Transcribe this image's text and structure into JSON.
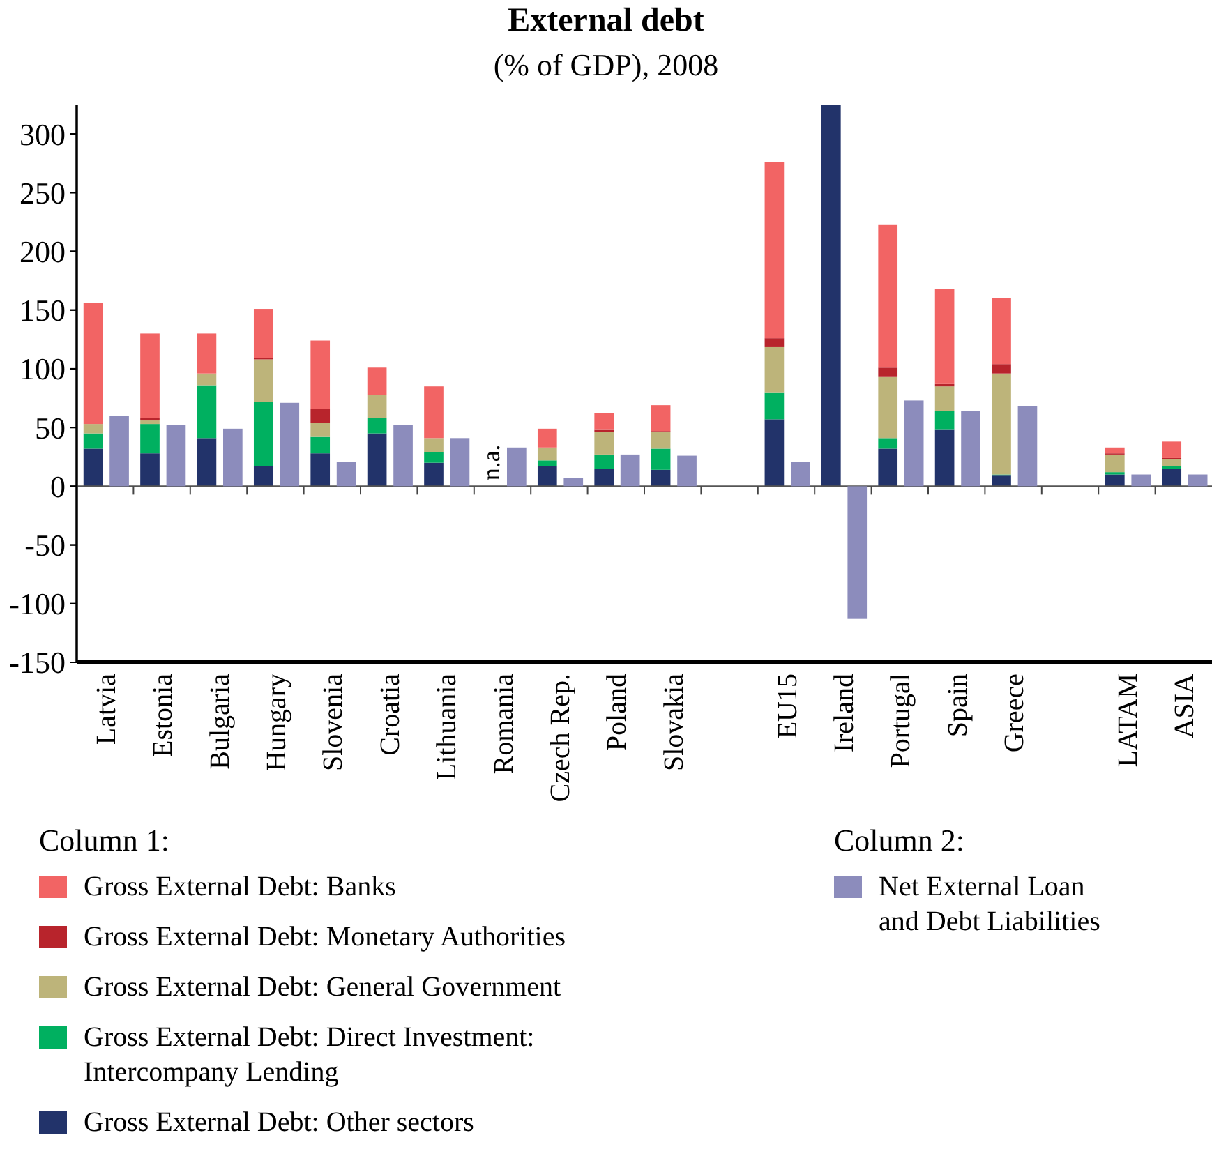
{
  "chart_data": [
    {
      "type": "bar",
      "title": "External debt",
      "subtitle": "(% of GDP), 2008",
      "categories": [
        "Latvia",
        "Estonia",
        "Bulgaria",
        "Hungary",
        "Slovenia",
        "Croatia",
        "Lithuania",
        "Romania",
        "Czech Rep.",
        "Poland",
        "Slovakia",
        null,
        "EU15",
        "Ireland",
        "Portugal",
        "Spain",
        "Greece",
        null,
        "LATAM",
        "ASIA"
      ],
      "stacked": true,
      "ylim": [
        -150,
        325
      ],
      "yticks": [
        -150,
        -100,
        -50,
        0,
        50,
        100,
        150,
        200,
        250,
        300
      ],
      "grid": false,
      "legend": "bottom",
      "series": [
        {
          "name": "Gross External Debt: Other sectors",
          "color": "#22336a",
          "values": [
            32,
            28,
            41,
            17,
            28,
            45,
            20,
            null,
            17,
            15,
            14,
            null,
            57,
            325,
            32,
            48,
            9,
            null,
            10,
            15
          ]
        },
        {
          "name": "Gross External Debt: Direct Investment: Intercompany Lending",
          "color": "#00b060",
          "values": [
            13,
            25,
            45,
            55,
            14,
            13,
            9,
            null,
            5,
            12,
            18,
            null,
            23,
            null,
            9,
            16,
            1,
            null,
            2,
            2
          ]
        },
        {
          "name": "Gross External Debt: General Government",
          "color": "#bdb47a",
          "values": [
            8,
            3,
            10,
            36,
            12,
            20,
            12,
            null,
            11,
            19,
            14,
            null,
            39,
            null,
            52,
            21,
            86,
            null,
            15,
            6
          ]
        },
        {
          "name": "Gross External Debt: Monetary Authorities",
          "color": "#b8242c",
          "values": [
            null,
            2,
            null,
            1,
            12,
            null,
            null,
            null,
            null,
            2,
            1,
            null,
            7,
            null,
            8,
            2,
            8,
            null,
            1,
            1
          ]
        },
        {
          "name": "Gross External Debt: Banks",
          "color": "#f26464",
          "values": [
            103,
            72,
            34,
            42,
            58,
            23,
            44,
            null,
            16,
            14,
            22,
            null,
            150,
            null,
            122,
            81,
            56,
            null,
            5,
            14
          ]
        }
      ],
      "ref_lines": [
        {
          "axis": "y",
          "value": 0
        }
      ],
      "annotations": [
        "Column 1:",
        "n.a."
      ]
    },
    {
      "type": "bar",
      "categories": [
        null,
        null,
        null,
        null,
        null,
        null,
        null,
        null,
        null,
        null,
        null,
        null,
        null,
        null,
        null,
        null,
        null,
        null,
        null,
        null
      ],
      "ylim": [
        -150,
        325
      ],
      "yticks": [
        -150,
        -100,
        -50,
        0,
        50,
        100,
        150,
        200,
        250,
        300
      ],
      "tick_labels": false,
      "legend": "bottom",
      "series": [
        {
          "name": "Net External Loan and Debt Liabilities",
          "color": "#8c8cbc",
          "values": [
            60,
            52,
            49,
            71,
            21,
            52,
            41,
            33,
            7,
            27,
            26,
            null,
            21,
            -113,
            73,
            64,
            68,
            null,
            10,
            10
          ]
        }
      ],
      "annotations": [
        "Column 2:"
      ]
    }
  ]
}
